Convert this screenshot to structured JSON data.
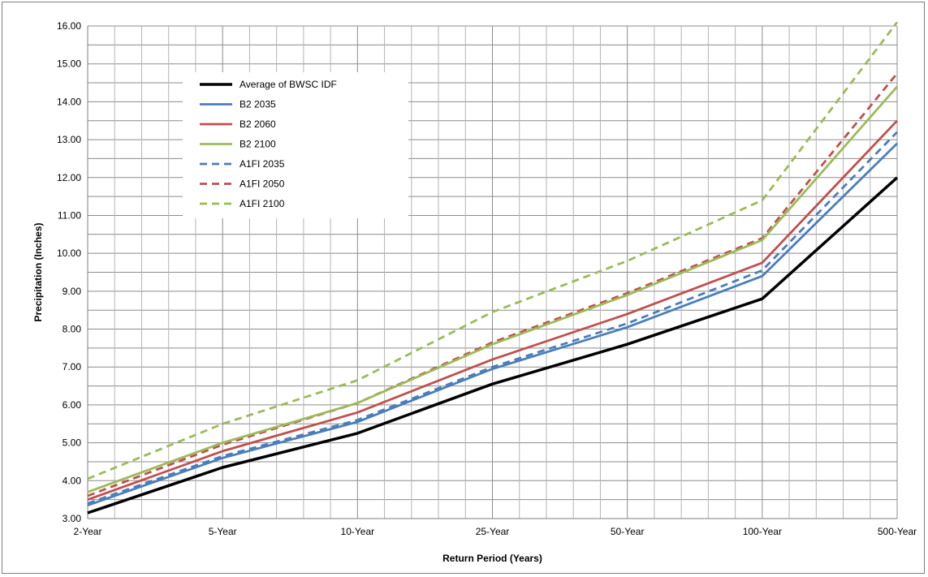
{
  "chart_data": {
    "type": "line",
    "categories": [
      "2-Year",
      "5-Year",
      "10-Year",
      "25-Year",
      "50-Year",
      "100-Year",
      "500-Year"
    ],
    "xlabel": "Return Period (Years)",
    "ylabel": "Precipitation (Inches)",
    "ylim": [
      3.0,
      16.0
    ],
    "ytick_step": 0.5,
    "ytick_labels": [
      "3.00",
      "4.00",
      "5.00",
      "6.00",
      "7.00",
      "8.00",
      "9.00",
      "10.00",
      "11.00",
      "12.00",
      "13.00",
      "14.00",
      "15.00",
      "16.00"
    ],
    "grid": true,
    "legend_position": "top-left",
    "series": [
      {
        "name": "Average of BWSC IDF",
        "color": "#000000",
        "dash": "solid",
        "values": [
          3.15,
          4.35,
          5.25,
          6.55,
          7.6,
          8.8,
          12.0
        ]
      },
      {
        "name": "B2 2035",
        "color": "#4a7ebb",
        "dash": "solid",
        "values": [
          3.35,
          4.6,
          5.55,
          6.95,
          8.05,
          9.4,
          12.9
        ]
      },
      {
        "name": "B2 2060",
        "color": "#c0504d",
        "dash": "solid",
        "values": [
          3.5,
          4.78,
          5.8,
          7.2,
          8.4,
          9.75,
          13.5
        ]
      },
      {
        "name": "B2 2100",
        "color": "#9bbb59",
        "dash": "solid",
        "values": [
          3.7,
          5.0,
          6.05,
          7.6,
          8.9,
          10.35,
          14.4
        ]
      },
      {
        "name": "A1FI 2035",
        "color": "#4a7ebb",
        "dash": "dashed",
        "values": [
          3.4,
          4.65,
          5.6,
          7.0,
          8.15,
          9.55,
          13.2
        ]
      },
      {
        "name": "A1FI 2050",
        "color": "#c0504d",
        "dash": "dashed",
        "values": [
          3.6,
          4.95,
          6.05,
          7.65,
          8.95,
          10.4,
          14.75
        ]
      },
      {
        "name": "A1FI 2100",
        "color": "#9bbb59",
        "dash": "dashed",
        "values": [
          4.05,
          5.5,
          6.65,
          8.45,
          9.8,
          11.4,
          16.1
        ]
      }
    ]
  }
}
